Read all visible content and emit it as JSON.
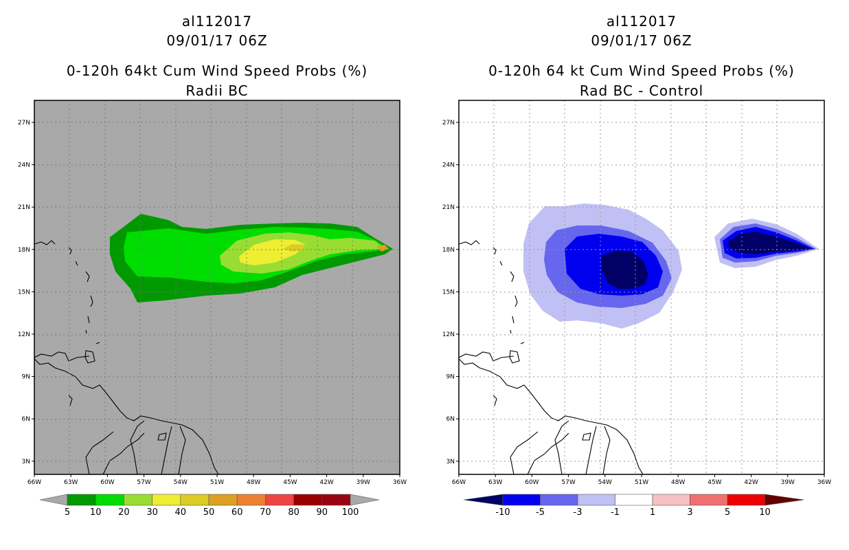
{
  "left_panel": {
    "storm_id": "al112017",
    "datetime": "09/01/17 06Z",
    "title": "0-120h 64kt Cum Wind Speed Probs (%)",
    "subtitle": "Radii BC",
    "background_color": "#a9a9a9",
    "colorbar": {
      "labels": [
        "5",
        "10",
        "20",
        "30",
        "40",
        "50",
        "60",
        "70",
        "80",
        "90",
        "100"
      ],
      "colors": [
        "#009900",
        "#00dd00",
        "#99dd33",
        "#eeee33",
        "#ddcc22",
        "#dda022",
        "#ee8033",
        "#ee4444",
        "#990000",
        "#990011",
        "#8800cc"
      ]
    }
  },
  "right_panel": {
    "storm_id": "al112017",
    "datetime": "09/01/17 06Z",
    "title": "0-120h 64 kt Cum Wind Speed Probs (%)",
    "subtitle": "Rad BC - Control",
    "background_color": "#ffffff",
    "colorbar": {
      "labels": [
        "-10",
        "-5",
        "-3",
        "-1",
        "1",
        "3",
        "5",
        "10"
      ],
      "colors": [
        "#000066",
        "#0000ee",
        "#6666ee",
        "#c0c0f4",
        "#ffffff",
        "#f8c0c0",
        "#f07070",
        "#ee0000",
        "#660000"
      ]
    }
  },
  "axes": {
    "x_ticks": [
      "66W",
      "63W",
      "60W",
      "57W",
      "54W",
      "51W",
      "48W",
      "45W",
      "42W",
      "39W",
      "36W"
    ],
    "y_ticks": [
      "27N",
      "24N",
      "21N",
      "18N",
      "15N",
      "12N",
      "9N",
      "6N",
      "3N"
    ]
  }
}
